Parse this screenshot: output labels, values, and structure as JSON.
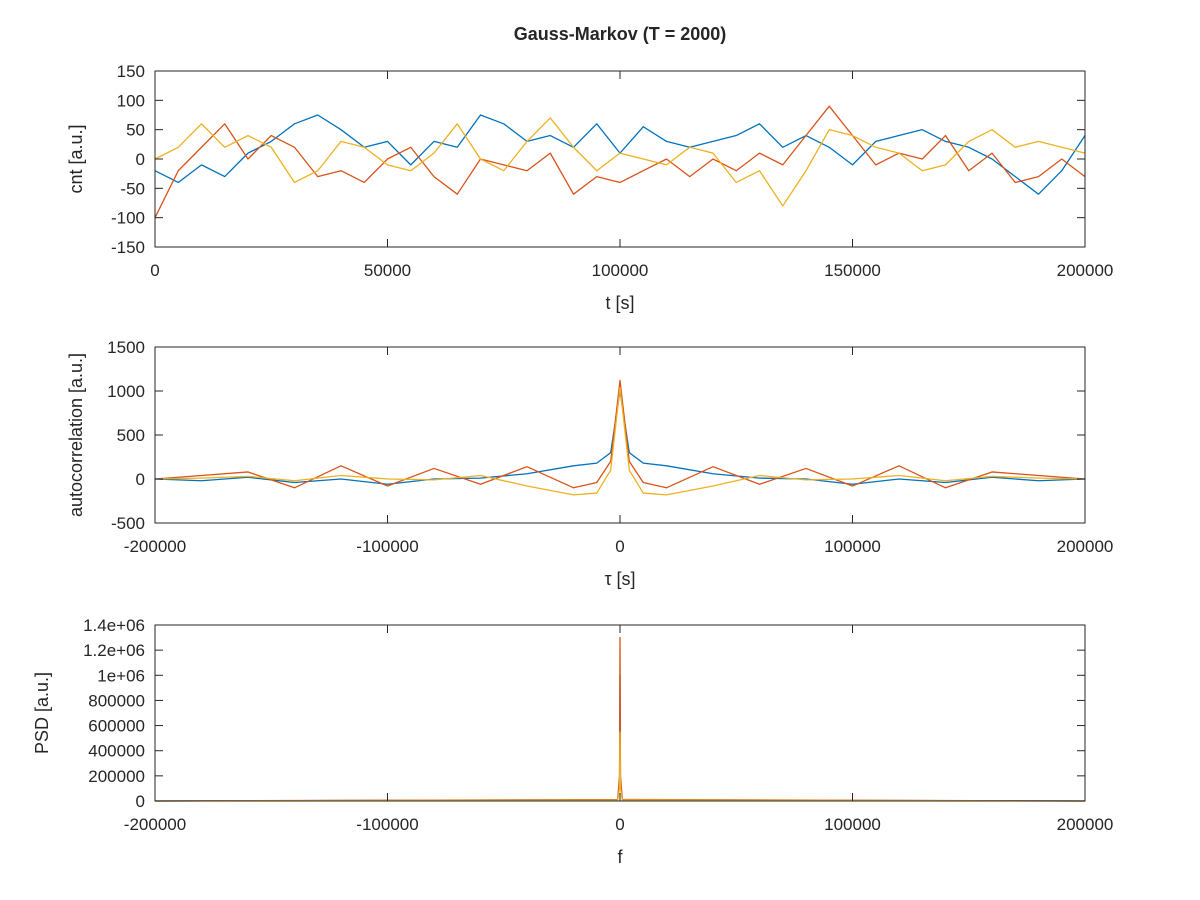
{
  "figure": {
    "title": "Gauss-Markov (T = 2000)",
    "series_colors": [
      "#0072BD",
      "#D95319",
      "#EDB120"
    ]
  },
  "chart_data": [
    {
      "type": "line",
      "id": "time-series",
      "xlabel": "t [s]",
      "ylabel": "cnt [a.u.]",
      "xlim": [
        0,
        200000
      ],
      "ylim": [
        -150,
        150
      ],
      "xticks": [
        0,
        50000,
        100000,
        150000,
        200000
      ],
      "xtick_labels": [
        "0",
        "50000",
        "100000",
        "150000",
        "200000"
      ],
      "yticks": [
        -150,
        -100,
        -50,
        0,
        50,
        100,
        150
      ],
      "ytick_labels": [
        "-150",
        "-100",
        "-50",
        "0",
        "50",
        "100",
        "150"
      ],
      "grid": false,
      "series": [
        {
          "color": "#0072BD",
          "x": [
            0,
            5000,
            10000,
            15000,
            20000,
            25000,
            30000,
            35000,
            40000,
            45000,
            50000,
            55000,
            60000,
            65000,
            70000,
            75000,
            80000,
            85000,
            90000,
            95000,
            100000,
            105000,
            110000,
            115000,
            120000,
            125000,
            130000,
            135000,
            140000,
            145000,
            150000,
            155000,
            160000,
            165000,
            170000,
            175000,
            180000,
            185000,
            190000,
            195000,
            200000
          ],
          "y": [
            -20,
            -40,
            -10,
            -30,
            10,
            30,
            60,
            75,
            50,
            20,
            30,
            -10,
            30,
            20,
            75,
            60,
            30,
            40,
            20,
            60,
            10,
            55,
            30,
            20,
            30,
            40,
            60,
            20,
            40,
            20,
            -10,
            30,
            40,
            50,
            30,
            20,
            0,
            -30,
            -60,
            -20,
            40
          ]
        },
        {
          "color": "#D95319",
          "x": [
            0,
            5000,
            10000,
            15000,
            20000,
            25000,
            30000,
            35000,
            40000,
            45000,
            50000,
            55000,
            60000,
            65000,
            70000,
            75000,
            80000,
            85000,
            90000,
            95000,
            100000,
            105000,
            110000,
            115000,
            120000,
            125000,
            130000,
            135000,
            140000,
            145000,
            150000,
            155000,
            160000,
            165000,
            170000,
            175000,
            180000,
            185000,
            190000,
            195000,
            200000
          ],
          "y": [
            -100,
            -20,
            20,
            60,
            0,
            40,
            20,
            -30,
            -20,
            -40,
            0,
            20,
            -30,
            -60,
            0,
            -10,
            -20,
            10,
            -60,
            -30,
            -40,
            -20,
            0,
            -30,
            0,
            -20,
            10,
            -10,
            40,
            90,
            40,
            -10,
            10,
            0,
            40,
            -20,
            10,
            -40,
            -30,
            0,
            -30
          ]
        },
        {
          "color": "#EDB120",
          "x": [
            0,
            5000,
            10000,
            15000,
            20000,
            25000,
            30000,
            35000,
            40000,
            45000,
            50000,
            55000,
            60000,
            65000,
            70000,
            75000,
            80000,
            85000,
            90000,
            95000,
            100000,
            105000,
            110000,
            115000,
            120000,
            125000,
            130000,
            135000,
            140000,
            145000,
            150000,
            155000,
            160000,
            165000,
            170000,
            175000,
            180000,
            185000,
            190000,
            195000,
            200000
          ],
          "y": [
            0,
            20,
            60,
            20,
            40,
            20,
            -40,
            -20,
            30,
            20,
            -10,
            -20,
            10,
            60,
            0,
            -20,
            30,
            70,
            20,
            -20,
            10,
            0,
            -10,
            20,
            10,
            -40,
            -20,
            -80,
            -20,
            50,
            40,
            20,
            10,
            -20,
            -10,
            30,
            50,
            20,
            30,
            20,
            10
          ]
        }
      ]
    },
    {
      "type": "line",
      "id": "autocorrelation",
      "xlabel": "τ [s]",
      "ylabel": "autocorrelation [a.u.]",
      "xlim": [
        -200000,
        200000
      ],
      "ylim": [
        -500,
        1500
      ],
      "xticks": [
        -200000,
        -100000,
        0,
        100000,
        200000
      ],
      "xtick_labels": [
        "-200000",
        "-100000",
        "0",
        "100000",
        "200000"
      ],
      "yticks": [
        -500,
        0,
        500,
        1000,
        1500
      ],
      "ytick_labels": [
        "-500",
        "0",
        "500",
        "1000",
        "1500"
      ],
      "grid": false,
      "series": [
        {
          "color": "#0072BD",
          "x": [
            -200000,
            -180000,
            -160000,
            -140000,
            -120000,
            -100000,
            -80000,
            -60000,
            -40000,
            -20000,
            -10000,
            -4000,
            0,
            4000,
            10000,
            20000,
            40000,
            60000,
            80000,
            100000,
            120000,
            140000,
            160000,
            180000,
            200000
          ],
          "y": [
            0,
            -20,
            20,
            -40,
            0,
            -60,
            0,
            10,
            60,
            150,
            180,
            300,
            1000,
            300,
            180,
            150,
            60,
            10,
            0,
            -60,
            0,
            -40,
            20,
            -20,
            0
          ]
        },
        {
          "color": "#D95319",
          "x": [
            -200000,
            -180000,
            -160000,
            -140000,
            -120000,
            -100000,
            -80000,
            -60000,
            -40000,
            -20000,
            -10000,
            -4000,
            0,
            4000,
            10000,
            20000,
            40000,
            60000,
            80000,
            100000,
            120000,
            140000,
            160000,
            180000,
            200000
          ],
          "y": [
            0,
            40,
            80,
            -100,
            150,
            -80,
            120,
            -60,
            140,
            -100,
            -40,
            200,
            1120,
            200,
            -40,
            -100,
            140,
            -60,
            120,
            -80,
            150,
            -100,
            80,
            40,
            0
          ]
        },
        {
          "color": "#EDB120",
          "x": [
            -200000,
            -180000,
            -160000,
            -140000,
            -120000,
            -100000,
            -80000,
            -60000,
            -40000,
            -20000,
            -10000,
            -4000,
            0,
            4000,
            10000,
            20000,
            40000,
            60000,
            80000,
            100000,
            120000,
            140000,
            160000,
            180000,
            200000
          ],
          "y": [
            0,
            10,
            30,
            -20,
            40,
            0,
            -10,
            40,
            -80,
            -180,
            -160,
            100,
            1040,
            100,
            -160,
            -180,
            -80,
            40,
            -10,
            0,
            40,
            -20,
            30,
            10,
            0
          ]
        }
      ]
    },
    {
      "type": "line",
      "id": "psd",
      "xlabel": "f",
      "ylabel": "PSD [a.u.]",
      "xlim": [
        -200000,
        200000
      ],
      "ylim": [
        0,
        1400000
      ],
      "xticks": [
        -200000,
        -100000,
        0,
        100000,
        200000
      ],
      "xtick_labels": [
        "-200000",
        "-100000",
        "0",
        "100000",
        "200000"
      ],
      "yticks": [
        0,
        200000,
        400000,
        600000,
        800000,
        1000000,
        1200000,
        1400000
      ],
      "ytick_labels": [
        "0",
        "200000",
        "400000",
        "600000",
        "800000",
        "1e+06",
        "1.2e+06",
        "1.4e+06"
      ],
      "grid": false,
      "series": [
        {
          "color": "#0072BD",
          "x": [
            -200000,
            -1000,
            -200,
            0,
            200,
            1000,
            200000
          ],
          "y": [
            0,
            10000,
            150000,
            1000000,
            150000,
            10000,
            0
          ]
        },
        {
          "color": "#D95319",
          "x": [
            -200000,
            -1000,
            -200,
            0,
            200,
            1000,
            200000
          ],
          "y": [
            0,
            12000,
            200000,
            1300000,
            200000,
            12000,
            0
          ]
        },
        {
          "color": "#EDB120",
          "x": [
            -200000,
            -1000,
            -200,
            0,
            200,
            1000,
            200000
          ],
          "y": [
            0,
            8000,
            100000,
            550000,
            100000,
            8000,
            0
          ]
        }
      ]
    }
  ]
}
